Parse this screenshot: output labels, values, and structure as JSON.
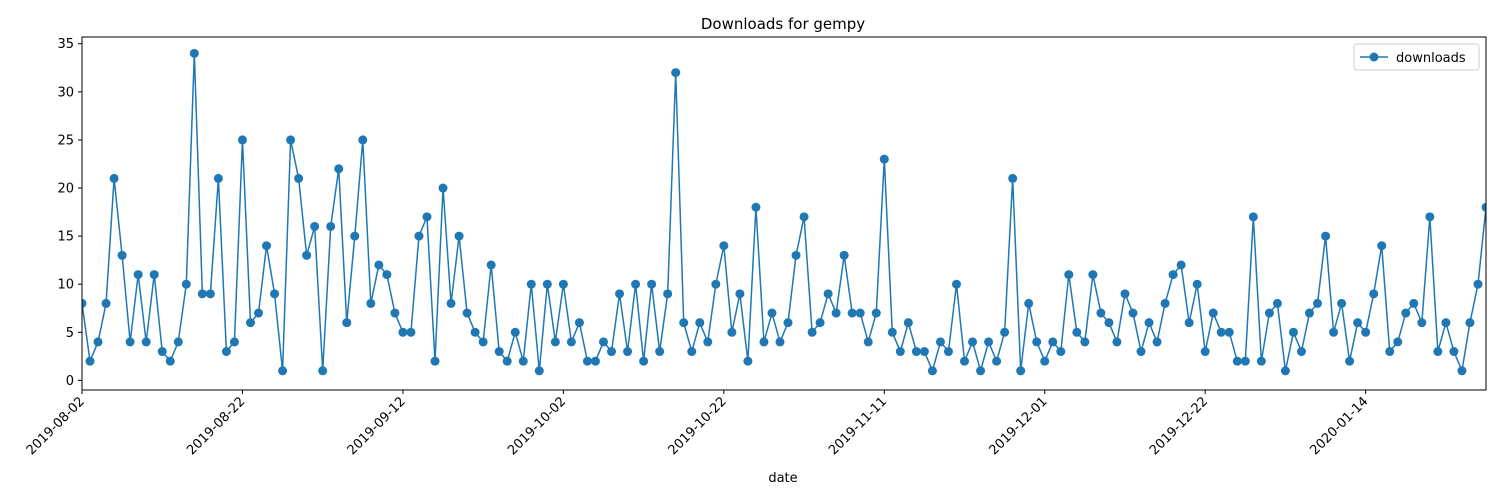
{
  "chart_data": {
    "type": "line",
    "title": "Downloads for gempy",
    "xlabel": "date",
    "ylabel": "",
    "ylim": [
      -1,
      35.7
    ],
    "yticks": [
      0,
      5,
      10,
      15,
      20,
      25,
      30,
      35
    ],
    "xtick_labels": [
      "2019-08-02",
      "2019-08-22",
      "2019-09-12",
      "2019-10-02",
      "2019-10-22",
      "2019-11-11",
      "2019-12-01",
      "2019-12-22",
      "2020-01-14"
    ],
    "grid": false,
    "legend": {
      "placement": "top-right",
      "entries": [
        "downloads"
      ]
    },
    "colors": {
      "series": "#1f77b4",
      "axis": "#000000",
      "background": "#ffffff"
    },
    "series": [
      {
        "name": "downloads",
        "marker": "circle",
        "values": [
          8,
          2,
          4,
          8,
          21,
          13,
          4,
          11,
          4,
          11,
          3,
          2,
          4,
          10,
          34,
          9,
          9,
          21,
          3,
          4,
          25,
          6,
          7,
          14,
          9,
          1,
          25,
          21,
          13,
          16,
          1,
          16,
          22,
          6,
          15,
          25,
          8,
          12,
          11,
          7,
          5,
          5,
          15,
          17,
          2,
          20,
          8,
          15,
          7,
          5,
          4,
          12,
          3,
          2,
          5,
          2,
          10,
          1,
          10,
          4,
          10,
          4,
          6,
          2,
          2,
          4,
          3,
          9,
          3,
          10,
          2,
          10,
          3,
          9,
          32,
          6,
          3,
          6,
          4,
          10,
          14,
          5,
          9,
          2,
          18,
          4,
          7,
          4,
          6,
          13,
          17,
          5,
          6,
          9,
          7,
          13,
          7,
          7,
          4,
          7,
          23,
          5,
          3,
          6,
          3,
          3,
          1,
          4,
          3,
          10,
          2,
          4,
          1,
          4,
          2,
          5,
          21,
          1,
          8,
          4,
          2,
          4,
          3,
          11,
          5,
          4,
          11,
          7,
          6,
          4,
          9,
          7,
          3,
          6,
          4,
          8,
          11,
          12,
          6,
          10,
          3,
          7,
          5,
          5,
          2,
          2,
          17,
          2,
          7,
          8,
          1,
          5,
          3,
          7,
          8,
          15,
          5,
          8,
          2,
          6,
          5,
          9,
          14,
          3,
          4,
          7,
          8,
          6,
          17,
          3,
          6,
          3,
          1,
          6,
          10,
          18
        ]
      }
    ]
  }
}
